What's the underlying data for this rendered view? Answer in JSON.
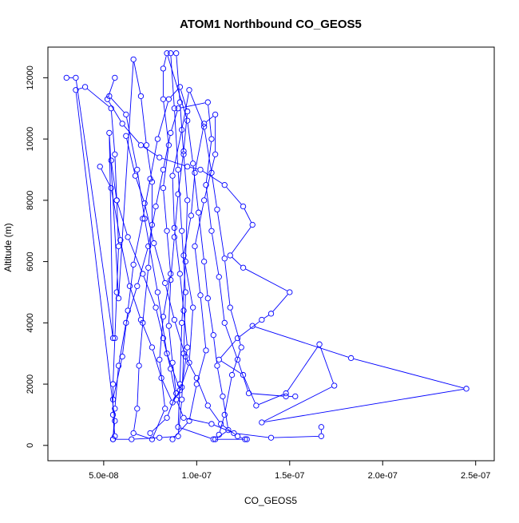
{
  "chart_data": {
    "type": "scatter",
    "title": "ATOM1 Northbound CO_GEOS5",
    "xlabel": "CO_GEOS5",
    "ylabel": "Altitude (m)",
    "xlim": [
      2e-08,
      2.6e-07
    ],
    "ylim": [
      -500,
      13000
    ],
    "x_ticks": [
      {
        "value": 5e-08,
        "label": "5.0e-08"
      },
      {
        "value": 1e-07,
        "label": "1.0e-07"
      },
      {
        "value": 1.5e-07,
        "label": "1.5e-07"
      },
      {
        "value": 2e-07,
        "label": "2.0e-07"
      },
      {
        "value": 2.5e-07,
        "label": "2.5e-07"
      }
    ],
    "y_ticks": [
      {
        "value": 0,
        "label": "0"
      },
      {
        "value": 2000,
        "label": "2000"
      },
      {
        "value": 4000,
        "label": "4000"
      },
      {
        "value": 6000,
        "label": "6000"
      },
      {
        "value": 8000,
        "label": "8000"
      },
      {
        "value": 10000,
        "label": "10000"
      },
      {
        "value": 12000,
        "label": "12000"
      }
    ],
    "grid": false,
    "legend": "none",
    "marker": "open-circle",
    "connected": true,
    "color": "#0000ff",
    "series": [
      {
        "points": [
          [
            5.6e-08,
            300
          ],
          [
            5.5e-08,
            1000
          ],
          [
            5.5e-08,
            2000
          ],
          [
            5.6e-08,
            3500
          ],
          [
            5.7e-08,
            5000
          ],
          [
            5.8e-08,
            6500
          ],
          [
            5.7e-08,
            8000
          ],
          [
            5.6e-08,
            9500
          ],
          [
            5.4e-08,
            11000
          ],
          [
            4e-08,
            11700
          ],
          [
            3.5e-08,
            11600
          ],
          [
            5.6e-08,
            800
          ],
          [
            5.5e-08,
            200
          ],
          [
            6.5e-08,
            200
          ],
          [
            8e-08,
            250
          ],
          [
            9e-08,
            300
          ],
          [
            9.2e-08,
            1500
          ],
          [
            9.3e-08,
            3000
          ],
          [
            9.4e-08,
            5000
          ],
          [
            9.2e-08,
            7000
          ],
          [
            9e-08,
            9000
          ],
          [
            8.8e-08,
            11000
          ],
          [
            8.6e-08,
            12800
          ],
          [
            8.9e-08,
            12800
          ],
          [
            9.1e-08,
            11200
          ],
          [
            9.3e-08,
            9500
          ],
          [
            9.5e-08,
            8000
          ],
          [
            9.4e-08,
            6000
          ],
          [
            9.2e-08,
            4000
          ],
          [
            9.1e-08,
            2000
          ],
          [
            9e-08,
            600
          ],
          [
            1.09e-07,
            200
          ],
          [
            1.27e-07,
            200
          ]
        ]
      },
      {
        "points": [
          [
            5.5e-08,
            200
          ],
          [
            5.6e-08,
            1200
          ],
          [
            5.8e-08,
            2600
          ],
          [
            6.2e-08,
            4000
          ],
          [
            6.8e-08,
            5200
          ],
          [
            7.4e-08,
            6500
          ],
          [
            7.8e-08,
            7800
          ],
          [
            8.2e-08,
            9000
          ],
          [
            8.6e-08,
            10200
          ],
          [
            9e-08,
            11000
          ],
          [
            1.06e-07,
            11200
          ],
          [
            1.08e-07,
            10000
          ],
          [
            1.05e-07,
            8500
          ],
          [
            1.08e-07,
            7000
          ],
          [
            1.12e-07,
            5500
          ],
          [
            1.15e-07,
            4000
          ],
          [
            1.22e-07,
            2800
          ],
          [
            1.28e-07,
            1700
          ],
          [
            1.48e-07,
            1600
          ],
          [
            1.53e-07,
            1600
          ]
        ]
      },
      {
        "points": [
          [
            5.4e-08,
            9300
          ],
          [
            5.7e-08,
            8000
          ],
          [
            6.3e-08,
            6800
          ],
          [
            7.1e-08,
            5600
          ],
          [
            7.8e-08,
            4500
          ],
          [
            8.2e-08,
            3500
          ],
          [
            8.6e-08,
            2500
          ],
          [
            8.9e-08,
            1500
          ],
          [
            9.3e-08,
            900
          ],
          [
            1.08e-07,
            700
          ],
          [
            1.2e-07,
            400
          ],
          [
            1.4e-07,
            250
          ],
          [
            1.67e-07,
            300
          ],
          [
            1.67e-07,
            600
          ]
        ]
      },
      {
        "points": [
          [
            5.6e-08,
            12000
          ],
          [
            5.2e-08,
            11300
          ],
          [
            6e-08,
            10500
          ],
          [
            7e-08,
            9800
          ],
          [
            8e-08,
            9400
          ],
          [
            9.5e-08,
            9100
          ],
          [
            1.02e-07,
            9000
          ],
          [
            1.15e-07,
            8500
          ],
          [
            1.25e-07,
            7800
          ],
          [
            1.3e-07,
            7200
          ],
          [
            1.18e-07,
            6200
          ],
          [
            1.25e-07,
            5800
          ],
          [
            1.5e-07,
            5000
          ],
          [
            1.4e-07,
            4300
          ],
          [
            1.35e-07,
            4100
          ],
          [
            1.22e-07,
            3500
          ],
          [
            1.12e-07,
            2800
          ],
          [
            1.25e-07,
            2300
          ],
          [
            1.32e-07,
            1300
          ],
          [
            1.48e-07,
            1700
          ],
          [
            1.66e-07,
            3300
          ],
          [
            1.74e-07,
            1950
          ],
          [
            1.35e-07,
            750
          ],
          [
            2.45e-07,
            1850
          ],
          [
            1.83e-07,
            2850
          ],
          [
            1.3e-07,
            3900
          ]
        ]
      },
      {
        "points": [
          [
            3e-08,
            12000
          ],
          [
            3.5e-08,
            12000
          ],
          [
            5.5e-08,
            3500
          ],
          [
            5.3e-08,
            10200
          ],
          [
            5.8e-08,
            4800
          ],
          [
            6.6e-08,
            12600
          ],
          [
            7e-08,
            11400
          ],
          [
            7.3e-08,
            9800
          ],
          [
            7.6e-08,
            8600
          ],
          [
            7.6e-08,
            7200
          ],
          [
            7.4e-08,
            5800
          ],
          [
            7.1e-08,
            4000
          ],
          [
            6.9e-08,
            2600
          ],
          [
            6.8e-08,
            1200
          ],
          [
            6.6e-08,
            400
          ],
          [
            7.6e-08,
            200
          ],
          [
            8.3e-08,
            1200
          ],
          [
            8e-08,
            2800
          ],
          [
            8.2e-08,
            4200
          ],
          [
            8.6e-08,
            5600
          ],
          [
            8.4e-08,
            7000
          ],
          [
            8.2e-08,
            8400
          ],
          [
            8.5e-08,
            9800
          ],
          [
            8.2e-08,
            11300
          ],
          [
            8.2e-08,
            12300
          ],
          [
            8.4e-08,
            12800
          ],
          [
            9.5e-08,
            10600
          ],
          [
            9.8e-08,
            9200
          ],
          [
            1.01e-07,
            7600
          ],
          [
            1.04e-07,
            6000
          ],
          [
            1.06e-07,
            4800
          ],
          [
            1.09e-07,
            3600
          ],
          [
            1.11e-07,
            2600
          ],
          [
            1.14e-07,
            1600
          ],
          [
            1.17e-07,
            500
          ],
          [
            1.1e-07,
            200
          ]
        ]
      },
      {
        "points": [
          [
            5.3e-08,
            11400
          ],
          [
            6.2e-08,
            10800
          ],
          [
            6.8e-08,
            9000
          ],
          [
            7.2e-08,
            7400
          ],
          [
            7.9e-08,
            5000
          ],
          [
            8.4e-08,
            3000
          ],
          [
            9.1e-08,
            1800
          ],
          [
            9.6e-08,
            2700
          ],
          [
            9.8e-08,
            4500
          ],
          [
            9.3e-08,
            6200
          ],
          [
            9.7e-08,
            7500
          ],
          [
            9.9e-08,
            8900
          ],
          [
            1.04e-07,
            10500
          ],
          [
            1.1e-07,
            10800
          ],
          [
            1.1e-07,
            9500
          ],
          [
            1.04e-07,
            8000
          ],
          [
            9.9e-08,
            6500
          ],
          [
            1.02e-07,
            4900
          ],
          [
            1.05e-07,
            3100
          ],
          [
            1e-07,
            2000
          ],
          [
            9.6e-08,
            800
          ],
          [
            8.7e-08,
            200
          ]
        ]
      },
      {
        "points": [
          [
            4.8e-08,
            9100
          ],
          [
            5.4e-08,
            8400
          ],
          [
            5.9e-08,
            6700
          ],
          [
            6.4e-08,
            5200
          ],
          [
            7e-08,
            4100
          ],
          [
            7.6e-08,
            3200
          ],
          [
            8.1e-08,
            2200
          ],
          [
            8.7e-08,
            1400
          ],
          [
            9.2e-08,
            1900
          ],
          [
            9.5e-08,
            3200
          ],
          [
            9.3e-08,
            4400
          ],
          [
            9.1e-08,
            5600
          ],
          [
            8.8e-08,
            7100
          ],
          [
            8.7e-08,
            8800
          ],
          [
            9.2e-08,
            10300
          ],
          [
            9.6e-08,
            11600
          ],
          [
            1.04e-07,
            10400
          ],
          [
            1.08e-07,
            8900
          ],
          [
            1.11e-07,
            7700
          ],
          [
            1.15e-07,
            6100
          ],
          [
            1.18e-07,
            4500
          ],
          [
            1.24e-07,
            3200
          ],
          [
            1.19e-07,
            2300
          ],
          [
            1.15e-07,
            1000
          ],
          [
            1.12e-07,
            350
          ]
        ]
      },
      {
        "points": [
          [
            5.5e-08,
            1500
          ],
          [
            6e-08,
            2900
          ],
          [
            6.3e-08,
            4400
          ],
          [
            6.6e-08,
            5900
          ],
          [
            7.1e-08,
            7400
          ],
          [
            7.5e-08,
            8700
          ],
          [
            7.9e-08,
            10000
          ],
          [
            8.5e-08,
            11300
          ],
          [
            9.1e-08,
            11700
          ],
          [
            9.5e-08,
            10900
          ],
          [
            9.3e-08,
            9600
          ],
          [
            9e-08,
            8200
          ],
          [
            8.8e-08,
            6800
          ],
          [
            8.6e-08,
            5400
          ],
          [
            8.5e-08,
            3900
          ],
          [
            8.7e-08,
            2700
          ],
          [
            8.9e-08,
            1700
          ],
          [
            8.4e-08,
            900
          ],
          [
            7.5e-08,
            400
          ]
        ]
      },
      {
        "points": [
          [
            6.2e-08,
            10100
          ],
          [
            6.7e-08,
            8800
          ],
          [
            7.2e-08,
            7900
          ],
          [
            7.7e-08,
            6600
          ],
          [
            8.3e-08,
            5300
          ],
          [
            8.8e-08,
            4100
          ],
          [
            9.4e-08,
            2900
          ],
          [
            1e-07,
            2200
          ],
          [
            1.06e-07,
            1300
          ],
          [
            1.13e-07,
            700
          ],
          [
            1.22e-07,
            300
          ],
          [
            1.26e-07,
            200
          ]
        ]
      }
    ]
  }
}
